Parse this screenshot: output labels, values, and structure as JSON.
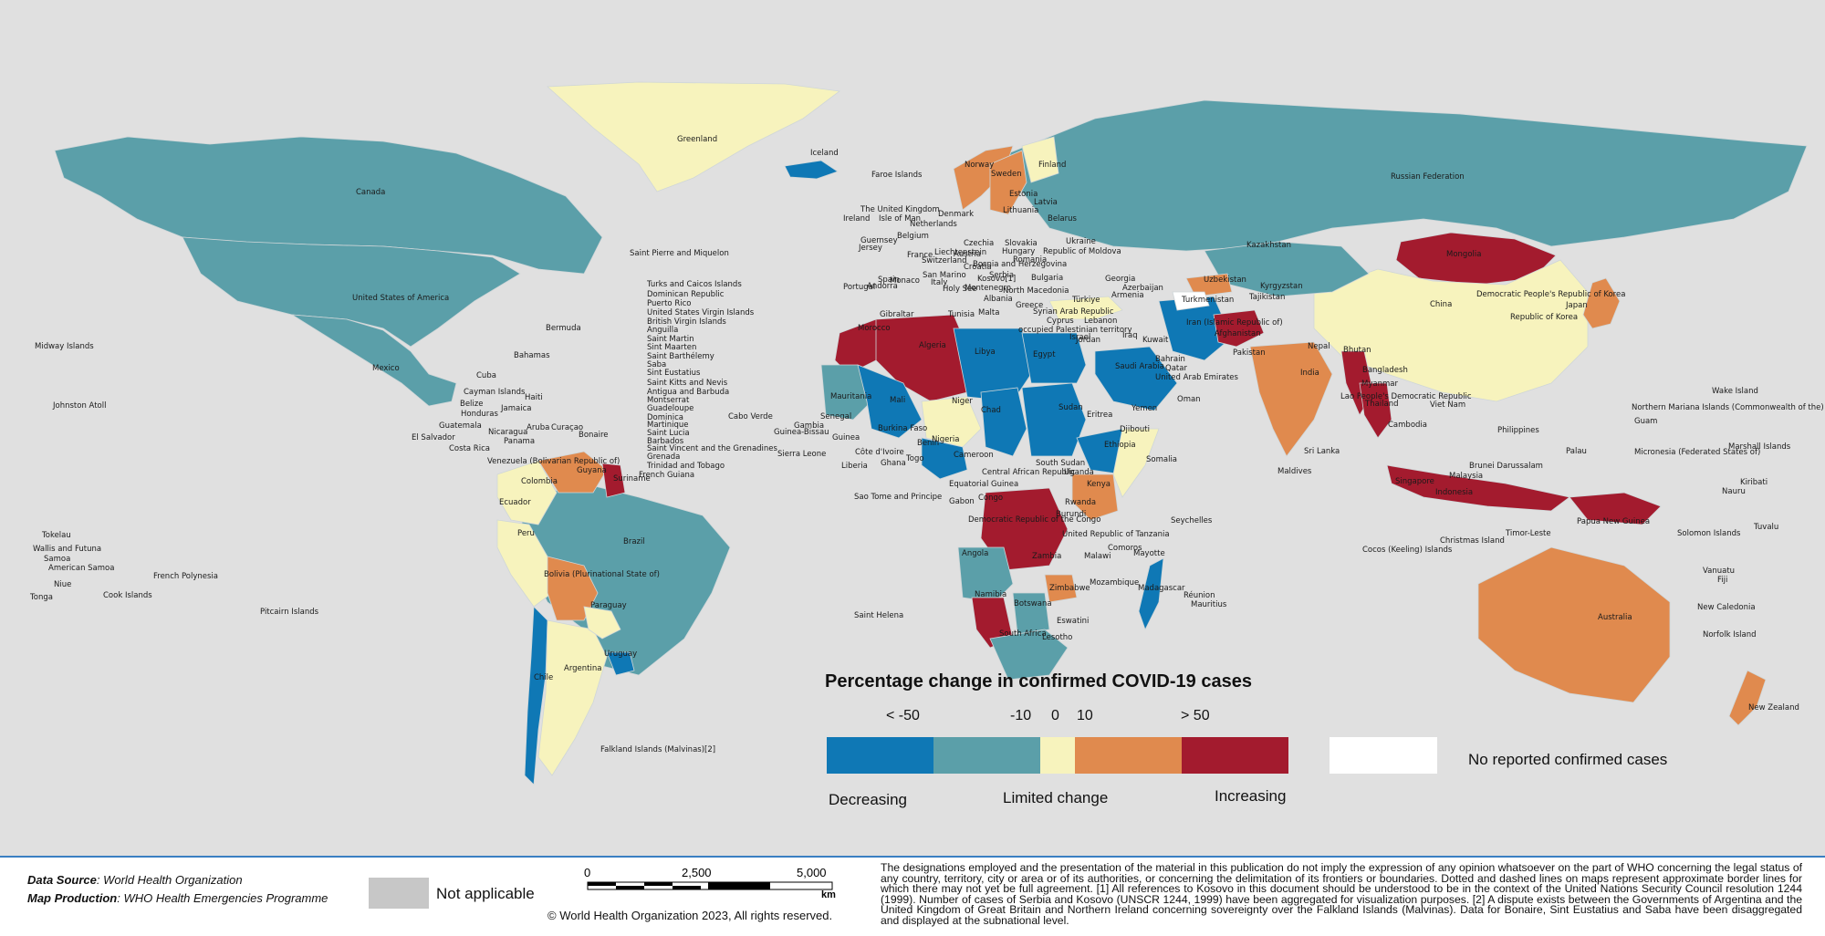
{
  "colors": {
    "background": "#e0e0e0",
    "decreasing_strong": "#0f78b5",
    "decreasing": "#5b9fa9",
    "limited": "#f7f3bd",
    "increasing": "#e08a4e",
    "increasing_strong": "#a31b2e",
    "no_reported": "#ffffff",
    "not_applicable": "#c7c7c7"
  },
  "legend": {
    "title": "Percentage change in confirmed COVID-19 cases",
    "ticks": [
      "< -50",
      "-10",
      "0",
      "10",
      "> 50"
    ],
    "bins": [
      {
        "class": "decreasing_strong",
        "color": "#0f78b5"
      },
      {
        "class": "decreasing",
        "color": "#5b9fa9"
      },
      {
        "class": "limited",
        "color": "#f7f3bd"
      },
      {
        "class": "increasing",
        "color": "#e08a4e"
      },
      {
        "class": "increasing_strong",
        "color": "#a31b2e"
      }
    ],
    "no_reported_label": "No reported confirmed cases",
    "decreasing_label": "Decreasing",
    "limited_label": "Limited change",
    "increasing_label": "Increasing"
  },
  "countries": [
    {
      "name": "Canada",
      "class": "decreasing"
    },
    {
      "name": "United States of America",
      "class": "decreasing"
    },
    {
      "name": "Mexico",
      "class": "decreasing"
    },
    {
      "name": "Greenland",
      "class": "limited"
    },
    {
      "name": "Iceland",
      "class": "decreasing_strong"
    },
    {
      "name": "Russian Federation",
      "class": "decreasing"
    },
    {
      "name": "China",
      "class": "limited"
    },
    {
      "name": "Mongolia",
      "class": "increasing_strong"
    },
    {
      "name": "Kazakhstan",
      "class": "decreasing"
    },
    {
      "name": "Brazil",
      "class": "decreasing"
    },
    {
      "name": "Argentina",
      "class": "limited"
    },
    {
      "name": "Chile",
      "class": "decreasing_strong"
    },
    {
      "name": "Peru",
      "class": "limited"
    },
    {
      "name": "Bolivia (Plurinational State of)",
      "class": "increasing"
    },
    {
      "name": "Venezuela (Bolivarian Republic of)",
      "class": "increasing"
    },
    {
      "name": "Guyana",
      "class": "increasing_strong"
    },
    {
      "name": "Colombia",
      "class": "limited"
    },
    {
      "name": "Uruguay",
      "class": "decreasing_strong"
    },
    {
      "name": "Paraguay",
      "class": "limited"
    },
    {
      "name": "Algeria",
      "class": "increasing_strong"
    },
    {
      "name": "Morocco",
      "class": "increasing_strong"
    },
    {
      "name": "Libya",
      "class": "decreasing_strong"
    },
    {
      "name": "Egypt",
      "class": "decreasing_strong"
    },
    {
      "name": "Sudan",
      "class": "decreasing_strong"
    },
    {
      "name": "Chad",
      "class": "decreasing_strong"
    },
    {
      "name": "Niger",
      "class": "limited"
    },
    {
      "name": "Mali",
      "class": "decreasing_strong"
    },
    {
      "name": "Mauritania",
      "class": "decreasing"
    },
    {
      "name": "Nigeria",
      "class": "decreasing_strong"
    },
    {
      "name": "Ethiopia",
      "class": "decreasing_strong"
    },
    {
      "name": "Somalia",
      "class": "limited"
    },
    {
      "name": "Kenya",
      "class": "increasing"
    },
    {
      "name": "Democratic Republic of the Congo",
      "class": "increasing_strong"
    },
    {
      "name": "Angola",
      "class": "decreasing"
    },
    {
      "name": "Namibia",
      "class": "increasing_strong"
    },
    {
      "name": "Botswana",
      "class": "decreasing"
    },
    {
      "name": "South Africa",
      "class": "decreasing"
    },
    {
      "name": "Zimbabwe",
      "class": "increasing"
    },
    {
      "name": "Madagascar",
      "class": "decreasing_strong"
    },
    {
      "name": "Saudi Arabia",
      "class": "decreasing_strong"
    },
    {
      "name": "Afghanistan",
      "class": "increasing_strong"
    },
    {
      "name": "India",
      "class": "increasing"
    },
    {
      "name": "Myanmar",
      "class": "increasing_strong"
    },
    {
      "name": "Thailand",
      "class": "increasing_strong"
    },
    {
      "name": "Indonesia",
      "class": "increasing_strong"
    },
    {
      "name": "Papua New Guinea",
      "class": "increasing_strong"
    },
    {
      "name": "Australia",
      "class": "increasing"
    },
    {
      "name": "New Zealand",
      "class": "increasing"
    },
    {
      "name": "Japan",
      "class": "increasing"
    },
    {
      "name": "Sweden",
      "class": "increasing"
    },
    {
      "name": "Norway",
      "class": "increasing"
    },
    {
      "name": "Finland",
      "class": "limited"
    },
    {
      "name": "Türkiye",
      "class": "limited"
    },
    {
      "name": "Iran (Islamic Republic of)",
      "class": "decreasing_strong"
    },
    {
      "name": "Uzbekistan",
      "class": "increasing"
    },
    {
      "name": "Turkmenistan",
      "class": "no_reported"
    }
  ],
  "map_labels": [
    "Greenland",
    "Iceland",
    "Faroe Islands",
    "Canada",
    "United States of America",
    "Saint Pierre and Miquelon",
    "Turks and Caicos Islands",
    "Dominican Republic",
    "Puerto Rico",
    "United States Virgin Islands",
    "British Virgin Islands",
    "Anguilla",
    "Saint Martin",
    "Sint Maarten",
    "Saint Barthélemy",
    "Saba",
    "Sint Eustatius",
    "Saint Kitts and Nevis",
    "Antigua and Barbuda",
    "Montserrat",
    "Guadeloupe",
    "Dominica",
    "Martinique",
    "Saint Lucia",
    "Barbados",
    "Saint Vincent and the Grenadines",
    "Grenada",
    "Trinidad and Tobago",
    "French Guiana",
    "Bermuda",
    "Midway Islands",
    "Bahamas",
    "Mexico",
    "Cuba",
    "Cayman Islands",
    "Belize",
    "Jamaica",
    "Haiti",
    "Honduras",
    "Johnston Atoll",
    "Guatemala",
    "El Salvador",
    "Nicaragua",
    "Costa Rica",
    "Panama",
    "Aruba",
    "Curaçao",
    "Bonaire",
    "Cabo Verde",
    "Venezuela (Bolivarian Republic of)",
    "Guyana",
    "Suriname",
    "Colombia",
    "Ecuador",
    "Peru",
    "Brazil",
    "Bolivia (Plurinational State of)",
    "Paraguay",
    "Chile",
    "Argentina",
    "Uruguay",
    "Falkland Islands (Malvinas)[2]",
    "Tokelau",
    "Wallis and Futuna",
    "Samoa",
    "American Samoa",
    "Niue",
    "Tonga",
    "Cook Islands",
    "French Polynesia",
    "Pitcairn Islands",
    "Norway",
    "Sweden",
    "Finland",
    "Estonia",
    "Latvia",
    "Lithuania",
    "Belarus",
    "Denmark",
    "The United Kingdom",
    "Ireland",
    "Isle of Man",
    "Netherlands",
    "Belgium",
    "Guernsey",
    "Jersey",
    "France",
    "Liechtenstein",
    "Switzerland",
    "Czechia",
    "Slovakia",
    "Hungary",
    "Austria",
    "Romania",
    "Croatia",
    "Bosnia and Herzegovina",
    "Republic of Moldova",
    "Ukraine",
    "Bulgaria",
    "Portugal",
    "Spain",
    "Andorra",
    "Monaco",
    "Italy",
    "San Marino",
    "Holy See",
    "Kosovo[1]",
    "Serbia",
    "Montenegro",
    "North Macedonia",
    "Albania",
    "Greece",
    "Gibraltar",
    "Malta",
    "Tunisia",
    "Türkiye",
    "Cyprus",
    "Syrian Arab Republic",
    "Lebanon",
    "occupied Palestinian territory",
    "Israel",
    "Jordan",
    "Iraq",
    "Kuwait",
    "Georgia",
    "Azerbaijan",
    "Armenia",
    "Kazakhstan",
    "Uzbekistan",
    "Kyrgyzstan",
    "Turkmenistan",
    "Tajikistan",
    "Iran (Islamic Republic of)",
    "Afghanistan",
    "Pakistan",
    "Russian Federation",
    "Mongolia",
    "China",
    "Democratic People's Republic of Korea",
    "Republic of Korea",
    "Japan",
    "Nepal",
    "Bhutan",
    "India",
    "Bangladesh",
    "Myanmar",
    "Lao People's Democratic Republic",
    "Thailand",
    "Viet Nam",
    "Cambodia",
    "Philippines",
    "Sri Lanka",
    "Maldives",
    "Malaysia",
    "Singapore",
    "Brunei Darussalam",
    "Indonesia",
    "Timor-Leste",
    "Papua New Guinea",
    "Christmas Island",
    "Cocos (Keeling) Islands",
    "Australia",
    "New Zealand",
    "Morocco",
    "Algeria",
    "Libya",
    "Egypt",
    "Mauritania",
    "Mali",
    "Niger",
    "Chad",
    "Sudan",
    "Eritrea",
    "Yemen",
    "Saudi Arabia",
    "Qatar",
    "Bahrain",
    "United Arab Emirates",
    "Oman",
    "Djibouti",
    "Ethiopia",
    "Somalia",
    "Senegal",
    "Gambia",
    "Guinea-Bissau",
    "Guinea",
    "Sierra Leone",
    "Liberia",
    "Côte d'Ivoire",
    "Ghana",
    "Togo",
    "Benin",
    "Burkina Faso",
    "Nigeria",
    "Cameroon",
    "Central African Republic",
    "South Sudan",
    "Uganda",
    "Kenya",
    "Rwanda",
    "Burundi",
    "Equatorial Guinea",
    "Gabon",
    "Congo",
    "Democratic Republic of the Congo",
    "United Republic of Tanzania",
    "Sao Tome and Principe",
    "Seychelles",
    "Comoros",
    "Mayotte",
    "Angola",
    "Zambia",
    "Malawi",
    "Mozambique",
    "Zimbabwe",
    "Namibia",
    "Botswana",
    "South Africa",
    "Lesotho",
    "Eswatini",
    "Madagascar",
    "Réunion",
    "Mauritius",
    "Saint Helena",
    "Wake Island",
    "Northern Mariana Islands (Commonwealth of the)",
    "Guam",
    "Palau",
    "Micronesia (Federated States of)",
    "Marshall Islands",
    "Kiribati",
    "Nauru",
    "Solomon Islands",
    "Tuvalu",
    "Vanuatu",
    "Fiji",
    "New Caledonia",
    "Norfolk Island"
  ],
  "footer": {
    "data_source_label": "Data Source",
    "data_source_value": ": World Health Organization",
    "map_production_label": "Map Production",
    "map_production_value": ": WHO Health Emergencies Programme",
    "not_applicable_label": "Not applicable",
    "scale_ticks": [
      "0",
      "2,500",
      "5,000"
    ],
    "scale_unit": "km",
    "copyright": "© World Health Organization  2023,  All rights reserved.",
    "disclaimer": "The designations employed and the presentation of the material in this publication do not imply the expression of any opinion whatsoever on the part of WHO concerning the legal status of any country, territory, city or area or of its authorities, or concerning the delimitation of its frontiers or boundaries. Dotted and dashed lines on maps represent approximate border lines for which there may not yet be full agreement. [1] All references to Kosovo in this document should be understood to be in the context of the United Nations Security Council resolution 1244 (1999). Number of cases of Serbia and Kosovo (UNSCR 1244, 1999) have been aggregated for visualization purposes. [2] A dispute exists between the Governments of Argentina and the United Kingdom of Great Britain and Northern Ireland concerning sovereignty over the Falkland Islands (Malvinas). Data for Bonaire, Sint Eustatius and Saba have been disaggregated and displayed at the subnational level."
  }
}
